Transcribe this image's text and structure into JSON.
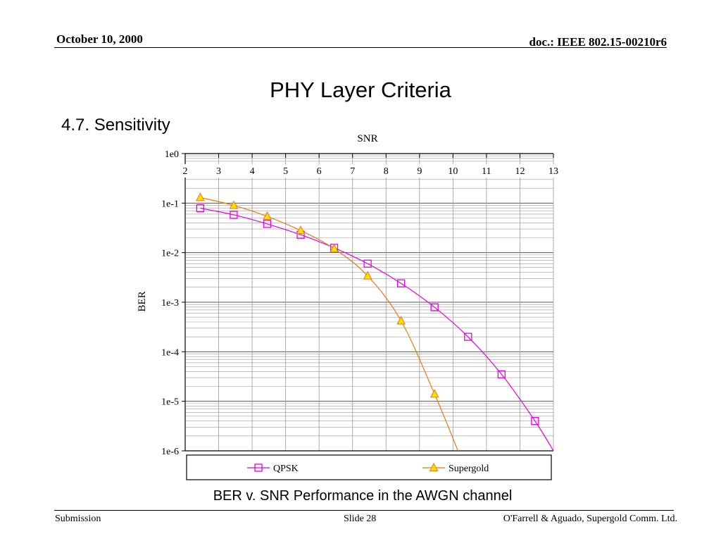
{
  "header": {
    "date": "October 10, 2000",
    "doc": "doc.: IEEE 802.15-00210r6"
  },
  "slide": {
    "title": "PHY Layer Criteria",
    "subtitle": "4.7. Sensitivity",
    "caption": "BER v. SNR Performance in the AWGN channel"
  },
  "footer": {
    "left": "Submission",
    "center": "Slide 28",
    "right": "O'Farrell & Aguado, Supergold Comm. Ltd."
  },
  "colors": {
    "qpsk": "#e600e6",
    "supergold": "#e87a10",
    "supergold_fill": "#ffdd00",
    "grid": "#9a9a9a"
  },
  "chart_data": {
    "type": "line",
    "xlabel": "SNR",
    "ylabel": "BER",
    "xlim": [
      2,
      13
    ],
    "ylim": [
      1e-06,
      1
    ],
    "yscale": "log",
    "xticks": [
      "2",
      "3",
      "4",
      "5",
      "6",
      "7",
      "8",
      "9",
      "10",
      "11",
      "12",
      "13"
    ],
    "yticks": [
      "1e0",
      "1e-1",
      "1e-2",
      "1e-3",
      "1e-4",
      "1e-5",
      "1e-6"
    ],
    "x_axis_position": "top",
    "grid": true,
    "legend": "bottom",
    "series": [
      {
        "name": "QPSK",
        "marker": "square",
        "x": [
          2.45,
          3.45,
          4.45,
          5.45,
          6.45,
          7.45,
          8.45,
          9.45,
          10.45,
          11.45,
          12.45,
          13.0
        ],
        "y": [
          0.079,
          0.058,
          0.038,
          0.023,
          0.0125,
          0.006,
          0.0024,
          0.00079,
          0.0002,
          3.5e-05,
          4e-06,
          1e-06
        ]
      },
      {
        "name": "Supergold",
        "marker": "triangle",
        "x": [
          2.45,
          3.45,
          4.45,
          5.45,
          6.45,
          7.45,
          8.45,
          9.45,
          10.15
        ],
        "y": [
          0.13,
          0.09,
          0.054,
          0.028,
          0.012,
          0.0034,
          0.00042,
          1.4e-05,
          1e-06
        ]
      }
    ]
  }
}
